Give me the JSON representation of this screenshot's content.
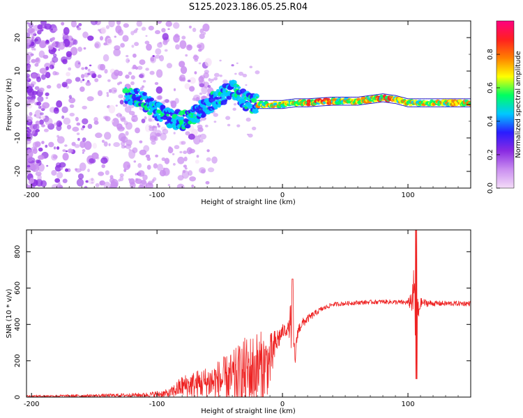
{
  "title": "S125.2023.186.05.25.R04",
  "chart_data": [
    {
      "type": "heatmap",
      "title": "S125.2023.186.05.25.R04",
      "xlabel": "Height of straight line (km)",
      "ylabel": "Frequency (Hz)",
      "xlim": [
        -204,
        150
      ],
      "ylim": [
        -25,
        25
      ],
      "xticks": [
        -200,
        -100,
        0,
        100
      ],
      "yticks": [
        -20,
        -10,
        0,
        10,
        20
      ],
      "colorbar": {
        "label": "Normalized spectral amplitude",
        "range": [
          0.0,
          1.0
        ],
        "ticks": [
          "0.0",
          "0.2",
          "0.4",
          "0.6",
          "0.8"
        ],
        "colors": [
          "#f4dcf8",
          "#ca8ff0",
          "#8a2be2",
          "#2a1cff",
          "#00c8ff",
          "#00ff60",
          "#ffff00",
          "#ff8000",
          "#ff2020",
          "#ff0080"
        ]
      },
      "ridge": {
        "x": [
          -120,
          -110,
          -100,
          -90,
          -80,
          -70,
          -60,
          -50,
          -40,
          -30,
          -20,
          -10,
          0,
          10,
          20,
          40,
          60,
          80,
          90,
          100,
          110,
          130,
          150
        ],
        "freq": [
          3,
          1,
          -2,
          -4,
          -5,
          -3,
          0,
          2,
          5,
          1,
          0,
          0,
          0,
          0.5,
          0.5,
          1,
          1,
          2,
          1.5,
          0.5,
          0.5,
          0.5,
          0.5
        ]
      }
    },
    {
      "type": "line",
      "xlabel": "Height of straight line (km)",
      "ylabel": "SNR (10 * v/v)",
      "xlim": [
        -204,
        150
      ],
      "ylim": [
        0,
        920
      ],
      "xticks": [
        -200,
        -100,
        0,
        100
      ],
      "yticks": [
        0,
        200,
        400,
        600,
        800
      ],
      "color": "#ee2222",
      "envelope": {
        "x": [
          -204,
          -150,
          -110,
          -90,
          -80,
          -60,
          -40,
          -30,
          -20,
          -10,
          -5,
          0,
          5,
          8,
          10,
          12,
          15,
          20,
          30,
          40,
          60,
          80,
          100,
          104,
          106,
          107,
          108,
          110,
          120,
          150
        ],
        "base": [
          5,
          8,
          12,
          20,
          60,
          80,
          100,
          130,
          150,
          190,
          300,
          360,
          380,
          420,
          200,
          360,
          400,
          430,
          480,
          510,
          520,
          525,
          520,
          540,
          560,
          500,
          450,
          520,
          515,
          515
        ],
        "amp": [
          6,
          8,
          12,
          25,
          60,
          90,
          150,
          200,
          220,
          160,
          80,
          40,
          35,
          230,
          40,
          40,
          30,
          22,
          15,
          12,
          12,
          12,
          14,
          90,
          370,
          380,
          80,
          25,
          15,
          14
        ]
      }
    }
  ]
}
